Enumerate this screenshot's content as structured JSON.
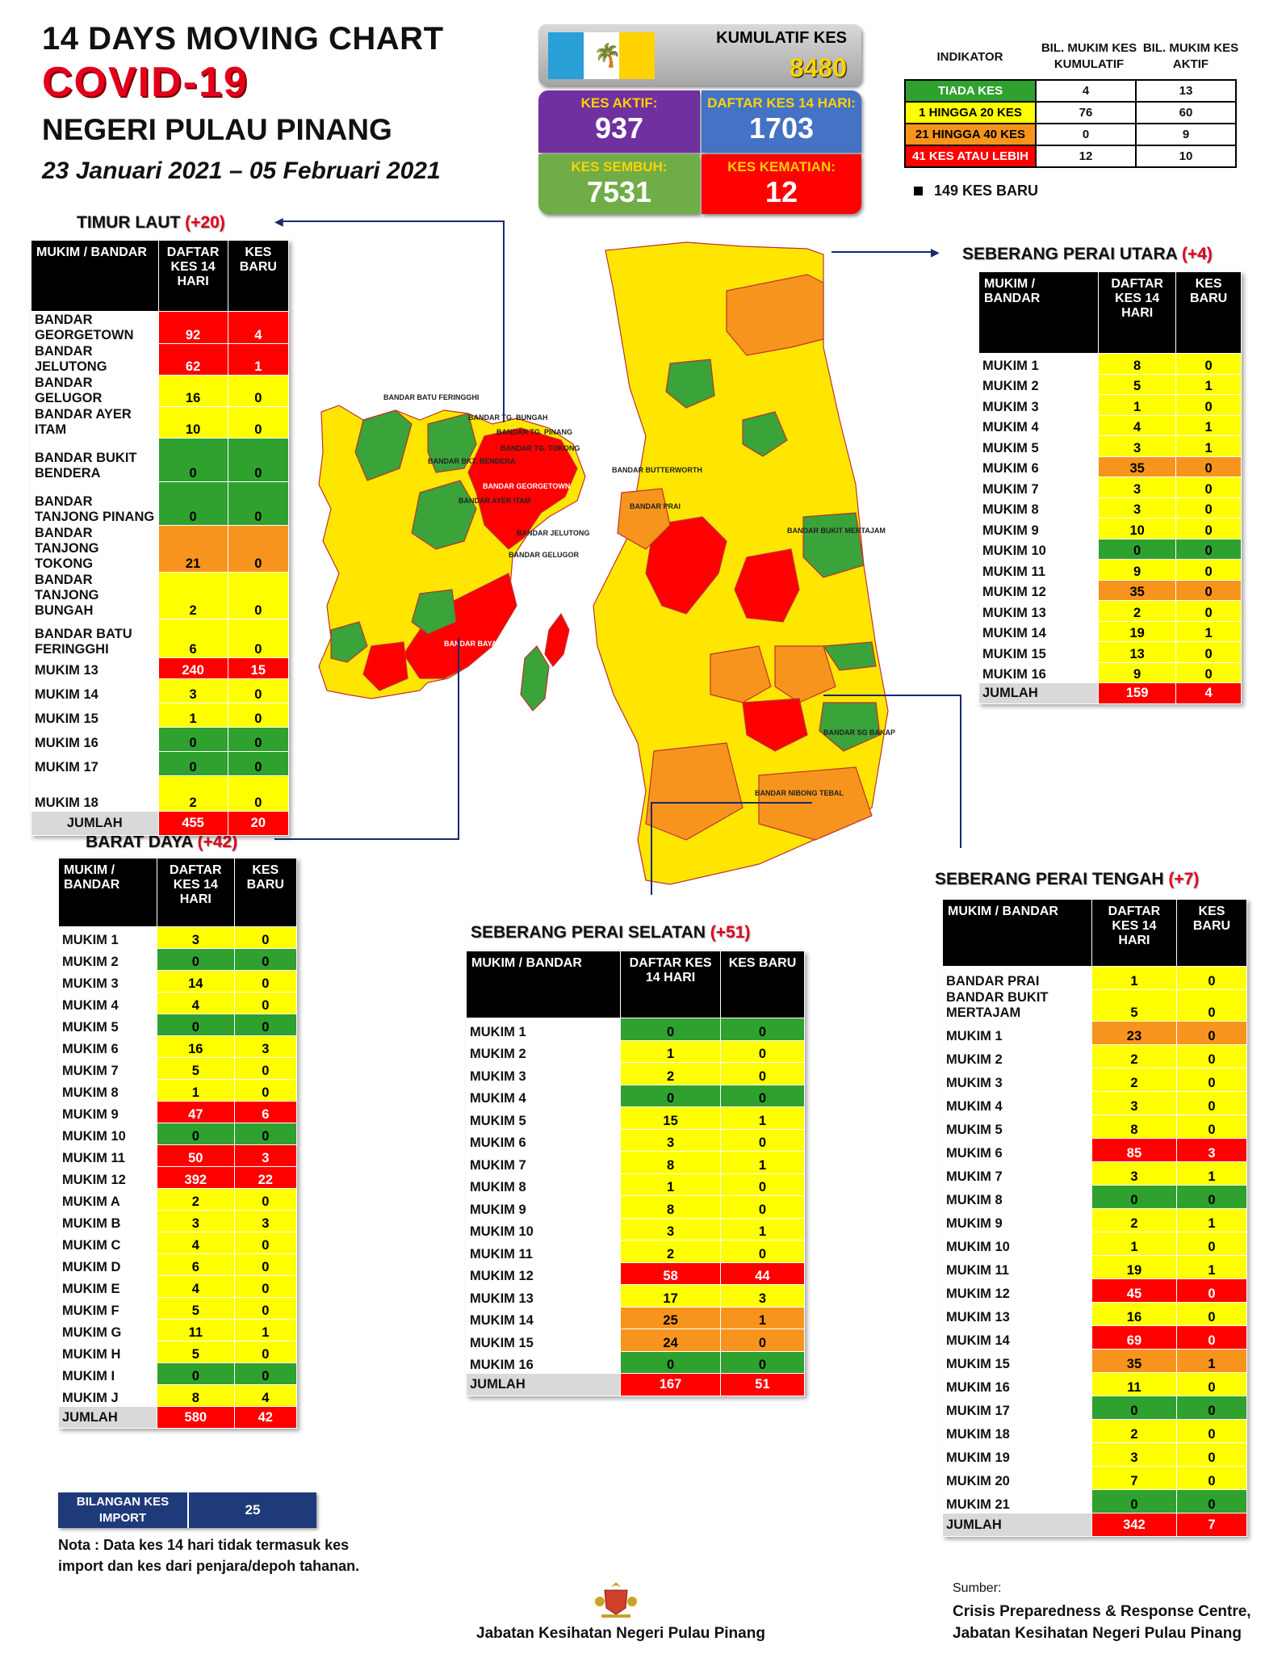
{
  "header": {
    "line1": "14  DAYS MOVING CHART",
    "line2": "COVID-19",
    "line3": "NEGERI PULAU PINANG",
    "period": "23 Januari 2021 – 05 Februari 2021"
  },
  "summary": {
    "cumulative_label": "KUMULATIF KES",
    "cumulative_value": "8480",
    "active_label": "KES AKTIF:",
    "active_value": "937",
    "list14_label": "DAFTAR KES 14 HARI:",
    "list14_value": "1703",
    "recovered_label": "KES SEMBUH:",
    "recovered_value": "7531",
    "deaths_label": "KES KEMATIAN:",
    "deaths_value": "12"
  },
  "indicator": {
    "head_indicator": "INDIKATOR",
    "head_cum": "BIL. MUKIM KES KUMULATIF",
    "head_active": "BIL. MUKIM KES AKTIF",
    "rows": [
      {
        "label": "TIADA KES",
        "cum": "4",
        "active": "13",
        "color": "#2fa12f"
      },
      {
        "label": "1 HINGGA 20 KES",
        "cum": "76",
        "active": "60",
        "color": "#ffff00"
      },
      {
        "label": "21 HINGGA 40 KES",
        "cum": "0",
        "active": "9",
        "color": "#f7941d"
      },
      {
        "label": "41 KES ATAU LEBIH",
        "cum": "12",
        "active": "10",
        "color": "#ff0000"
      }
    ],
    "new_cases_note": "149 KES BARU"
  },
  "tables": {
    "timur_laut": {
      "title": "TIMUR LAUT",
      "plus": "(+20)",
      "h1": "MUKIM / BANDAR",
      "h2": "DAFTAR KES 14 HARI",
      "h3": "KES BARU",
      "rows": [
        [
          "BANDAR GEORGETOWN",
          "92",
          "4",
          "r",
          "r",
          40
        ],
        [
          "BANDAR JELUTONG",
          "62",
          "1",
          "r",
          "r",
          28
        ],
        [
          "BANDAR GELUGOR",
          "16",
          "0",
          "y",
          "y",
          24
        ],
        [
          "BANDAR AYER ITAM",
          "10",
          "0",
          "y",
          "y",
          24
        ],
        [
          "BANDAR BUKIT BENDERA",
          "0",
          "0",
          "g",
          "g",
          54
        ],
        [
          "BANDAR TANJONG PINANG",
          "0",
          "0",
          "g",
          "g",
          54
        ],
        [
          "BANDAR TANJONG TOKONG",
          "21",
          "0",
          "o",
          "o",
          48
        ],
        [
          "BANDAR TANJONG BUNGAH",
          "2",
          "0",
          "y",
          "y",
          48
        ],
        [
          "BANDAR BATU FERINGGHI",
          "6",
          "0",
          "y",
          "y",
          48
        ],
        [
          "MUKIM 13",
          "240",
          "15",
          "r",
          "r",
          26
        ],
        [
          "MUKIM 14",
          "3",
          "0",
          "y",
          "y",
          30
        ],
        [
          "MUKIM 15",
          "1",
          "0",
          "y",
          "y",
          30
        ],
        [
          "MUKIM 16",
          "0",
          "0",
          "g",
          "g",
          30
        ],
        [
          "MUKIM 17",
          "0",
          "0",
          "g",
          "g",
          30
        ],
        [
          "MUKIM 18",
          "2",
          "0",
          "y",
          "y",
          44
        ]
      ],
      "total": [
        "JUMLAH",
        "455",
        "20"
      ]
    },
    "barat_daya": {
      "title": "BARAT DAYA",
      "plus": "(+42)",
      "h1": "MUKIM / BANDAR",
      "h2": "DAFTAR KES 14 HARI",
      "h3": "KES BARU",
      "rows": [
        [
          "MUKIM 1",
          "3",
          "0",
          "y",
          "y"
        ],
        [
          "MUKIM 2",
          "0",
          "0",
          "g",
          "g"
        ],
        [
          "MUKIM 3",
          "14",
          "0",
          "y",
          "y"
        ],
        [
          "MUKIM 4",
          "4",
          "0",
          "y",
          "y"
        ],
        [
          "MUKIM 5",
          "0",
          "0",
          "g",
          "g"
        ],
        [
          "MUKIM 6",
          "16",
          "3",
          "y",
          "y"
        ],
        [
          "MUKIM 7",
          "5",
          "0",
          "y",
          "y"
        ],
        [
          "MUKIM 8",
          "1",
          "0",
          "y",
          "y"
        ],
        [
          "MUKIM 9",
          "47",
          "6",
          "r",
          "r"
        ],
        [
          "MUKIM 10",
          "0",
          "0",
          "g",
          "g"
        ],
        [
          "MUKIM 11",
          "50",
          "3",
          "r",
          "r"
        ],
        [
          "MUKIM 12",
          "392",
          "22",
          "r",
          "r"
        ],
        [
          "MUKIM A",
          "2",
          "0",
          "y",
          "y"
        ],
        [
          "MUKIM B",
          "3",
          "3",
          "y",
          "y"
        ],
        [
          "MUKIM C",
          "4",
          "0",
          "y",
          "y"
        ],
        [
          "MUKIM D",
          "6",
          "0",
          "y",
          "y"
        ],
        [
          "MUKIM E",
          "4",
          "0",
          "y",
          "y"
        ],
        [
          "MUKIM F",
          "5",
          "0",
          "y",
          "y"
        ],
        [
          "MUKIM G",
          "11",
          "1",
          "y",
          "y"
        ],
        [
          "MUKIM H",
          "5",
          "0",
          "y",
          "y"
        ],
        [
          "MUKIM I",
          "0",
          "0",
          "g",
          "g"
        ],
        [
          "MUKIM J",
          "8",
          "4",
          "y",
          "y"
        ]
      ],
      "total": [
        "JUMLAH",
        "580",
        "42"
      ]
    },
    "sp_utara": {
      "title": "SEBERANG PERAI UTARA",
      "plus": "(+4)",
      "h1": "MUKIM / BANDAR",
      "h2": "DAFTAR KES 14 HARI",
      "h3": "KES BARU",
      "rows": [
        [
          "MUKIM 1",
          "8",
          "0",
          "y",
          "y"
        ],
        [
          "MUKIM 2",
          "5",
          "1",
          "y",
          "y"
        ],
        [
          "MUKIM 3",
          "1",
          "0",
          "y",
          "y"
        ],
        [
          "MUKIM 4",
          "4",
          "1",
          "y",
          "y"
        ],
        [
          "MUKIM 5",
          "3",
          "1",
          "y",
          "y"
        ],
        [
          "MUKIM 6",
          "35",
          "0",
          "o",
          "o"
        ],
        [
          "MUKIM 7",
          "3",
          "0",
          "y",
          "y"
        ],
        [
          "MUKIM 8",
          "3",
          "0",
          "y",
          "y"
        ],
        [
          "MUKIM 9",
          "10",
          "0",
          "y",
          "y"
        ],
        [
          "MUKIM 10",
          "0",
          "0",
          "g",
          "g"
        ],
        [
          "MUKIM 11",
          "9",
          "0",
          "y",
          "y"
        ],
        [
          "MUKIM 12",
          "35",
          "0",
          "o",
          "o"
        ],
        [
          "MUKIM 13",
          "2",
          "0",
          "y",
          "y"
        ],
        [
          "MUKIM 14",
          "19",
          "1",
          "y",
          "y"
        ],
        [
          "MUKIM 15",
          "13",
          "0",
          "y",
          "y"
        ],
        [
          "MUKIM 16",
          "9",
          "0",
          "y",
          "y"
        ]
      ],
      "total": [
        "JUMLAH",
        "159",
        "4"
      ]
    },
    "sp_selatan": {
      "title": "SEBERANG PERAI SELATAN",
      "plus": "(+51)",
      "h1": "MUKIM / BANDAR",
      "h2": "DAFTAR KES 14 HARI",
      "h3": "KES BARU",
      "rows": [
        [
          "MUKIM 1",
          "0",
          "0",
          "g",
          "g"
        ],
        [
          "MUKIM 2",
          "1",
          "0",
          "y",
          "y"
        ],
        [
          "MUKIM 3",
          "2",
          "0",
          "y",
          "y"
        ],
        [
          "MUKIM 4",
          "0",
          "0",
          "g",
          "g"
        ],
        [
          "MUKIM 5",
          "15",
          "1",
          "y",
          "y"
        ],
        [
          "MUKIM 6",
          "3",
          "0",
          "y",
          "y"
        ],
        [
          "MUKIM 7",
          "8",
          "1",
          "y",
          "y"
        ],
        [
          "MUKIM 8",
          "1",
          "0",
          "y",
          "y"
        ],
        [
          "MUKIM 9",
          "8",
          "0",
          "y",
          "y"
        ],
        [
          "MUKIM 10",
          "3",
          "1",
          "y",
          "y"
        ],
        [
          "MUKIM 11",
          "2",
          "0",
          "y",
          "y"
        ],
        [
          "MUKIM 12",
          "58",
          "44",
          "r",
          "r"
        ],
        [
          "MUKIM 13",
          "17",
          "3",
          "y",
          "y"
        ],
        [
          "MUKIM 14",
          "25",
          "1",
          "o",
          "o"
        ],
        [
          "MUKIM 15",
          "24",
          "0",
          "o",
          "o"
        ],
        [
          "MUKIM 16",
          "0",
          "0",
          "g",
          "g"
        ]
      ],
      "total": [
        "JUMLAH",
        "167",
        "51"
      ]
    },
    "sp_tengah": {
      "title": "SEBERANG PERAI TENGAH",
      "plus": "(+7)",
      "h1": "MUKIM / BANDAR",
      "h2": "DAFTAR KES 14 HARI",
      "h3": "KES BARU",
      "rows": [
        [
          "BANDAR PRAI",
          "1",
          "0",
          "y",
          "y"
        ],
        [
          "BANDAR BUKIT MERTAJAM",
          "5",
          "0",
          "y",
          "y"
        ],
        [
          "MUKIM 1",
          "23",
          "0",
          "o",
          "o"
        ],
        [
          "MUKIM 2",
          "2",
          "0",
          "y",
          "y"
        ],
        [
          "MUKIM 3",
          "2",
          "0",
          "y",
          "y"
        ],
        [
          "MUKIM 4",
          "3",
          "0",
          "y",
          "y"
        ],
        [
          "MUKIM 5",
          "8",
          "0",
          "y",
          "y"
        ],
        [
          "MUKIM 6",
          "85",
          "3",
          "r",
          "r"
        ],
        [
          "MUKIM 7",
          "3",
          "1",
          "y",
          "y"
        ],
        [
          "MUKIM 8",
          "0",
          "0",
          "g",
          "g"
        ],
        [
          "MUKIM 9",
          "2",
          "1",
          "y",
          "y"
        ],
        [
          "MUKIM 10",
          "1",
          "0",
          "y",
          "y"
        ],
        [
          "MUKIM 11",
          "19",
          "1",
          "y",
          "y"
        ],
        [
          "MUKIM 12",
          "45",
          "0",
          "r",
          "r"
        ],
        [
          "MUKIM 13",
          "16",
          "0",
          "y",
          "y"
        ],
        [
          "MUKIM 14",
          "69",
          "0",
          "r",
          "r"
        ],
        [
          "MUKIM 15",
          "35",
          "1",
          "o",
          "o"
        ],
        [
          "MUKIM 16",
          "11",
          "0",
          "y",
          "y"
        ],
        [
          "MUKIM 17",
          "0",
          "0",
          "g",
          "g"
        ],
        [
          "MUKIM 18",
          "2",
          "0",
          "y",
          "y"
        ],
        [
          "MUKIM 19",
          "3",
          "0",
          "y",
          "y"
        ],
        [
          "MUKIM 20",
          "7",
          "0",
          "y",
          "y"
        ],
        [
          "MUKIM 21",
          "0",
          "0",
          "g",
          "g"
        ]
      ],
      "total": [
        "JUMLAH",
        "342",
        "7"
      ]
    }
  },
  "import": {
    "label": "BILANGAN KES IMPORT",
    "value": "25"
  },
  "note": "Nota : Data kes 14 hari tidak termasuk kes import dan kes dari penjara/depoh tahanan.",
  "footer": {
    "center": "Jabatan Kesihatan Negeri Pulau Pinang",
    "source_label": "Sumber:",
    "source_line1": "Crisis Preparedness & Response Centre,",
    "source_line2": "Jabatan Kesihatan Negeri Pulau Pinang"
  },
  "map_labels": {
    "island": [
      "BANDAR BATU FERINGGHI",
      "BANDAR TG. BUNGAH",
      "BANDAR TG. PINANG",
      "BANDAR TG. TOKONG",
      "BANDAR BKT. BENDERA",
      "BANDAR GEORGETOWN",
      "BANDAR AYER ITAM",
      "BANDAR JELUTONG",
      "BANDAR GELUGOR",
      "BANDAR BAYAN LEPAS"
    ],
    "mainland": [
      "BANDAR BUTTERWORTH",
      "BANDAR PRAI",
      "BANDAR BUKIT MERTAJAM",
      "BANDAR SG BAKAP",
      "BANDAR NIBONG TEBAL"
    ]
  }
}
